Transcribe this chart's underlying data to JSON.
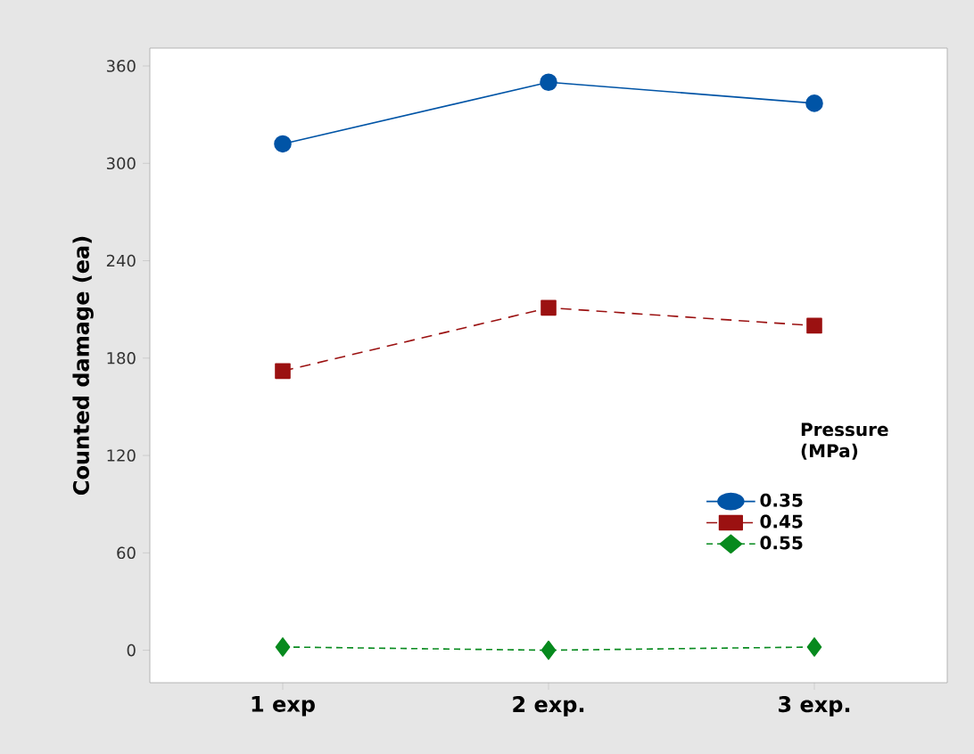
{
  "chart_data": {
    "type": "line",
    "ylabel": "Counted damage (ea)",
    "legend_title": "Pressure (MPa)",
    "categories": [
      "1 exp",
      "2 exp.",
      "3 exp."
    ],
    "series": [
      {
        "name": "0.35",
        "color": "#0054a6",
        "values": [
          312,
          350,
          337
        ],
        "marker": "circle",
        "line_style": "solid"
      },
      {
        "name": "0.45",
        "color": "#9b1111",
        "values": [
          172,
          211,
          200
        ],
        "marker": "square",
        "line_style": "dashed"
      },
      {
        "name": "0.55",
        "color": "#078a1e",
        "values": [
          2,
          0,
          2
        ],
        "marker": "diamond",
        "line_style": "dotted"
      }
    ],
    "ylim": [
      -20,
      371
    ],
    "yticks": [
      0,
      60,
      120,
      180,
      240,
      300,
      360
    ],
    "legend": "bottom right",
    "grid": false
  }
}
